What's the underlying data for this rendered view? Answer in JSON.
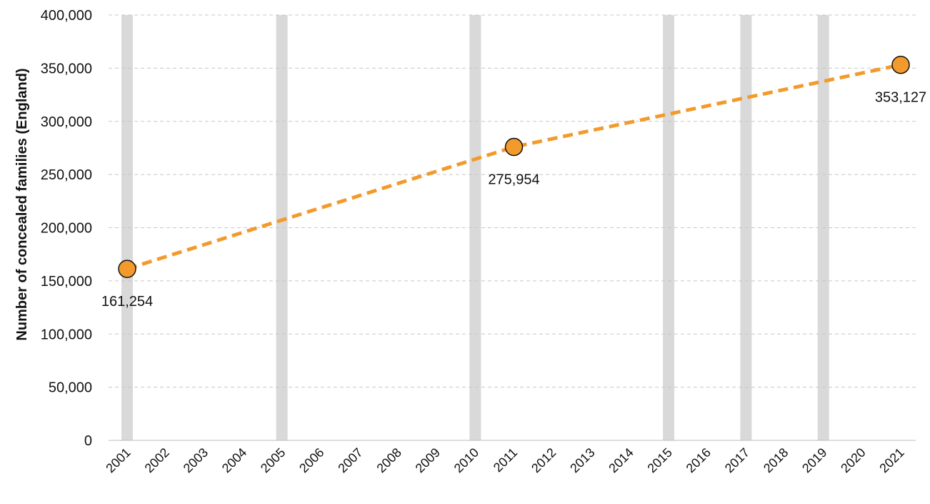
{
  "chart_data": {
    "type": "line",
    "title": "",
    "xlabel": "",
    "ylabel": "Number of concealed families (England)",
    "x": [
      "2001",
      "2002",
      "2003",
      "2004",
      "2005",
      "2006",
      "2007",
      "2008",
      "2009",
      "2010",
      "2011",
      "2012",
      "2013",
      "2014",
      "2015",
      "2016",
      "2017",
      "2018",
      "2019",
      "2020",
      "2021"
    ],
    "ylim": [
      0,
      400000
    ],
    "yticks": [
      0,
      50000,
      100000,
      150000,
      200000,
      250000,
      300000,
      350000,
      400000
    ],
    "ytick_labels": [
      "0",
      "50,000",
      "100,000",
      "150,000",
      "200,000",
      "250,000",
      "300,000",
      "350,000",
      "400,000"
    ],
    "grid": "horizontal dashed",
    "highlighted_years": [
      "2001",
      "2005",
      "2010",
      "2015",
      "2017",
      "2019"
    ],
    "series": [
      {
        "x": [
          "2001",
          "2011",
          "2021"
        ],
        "values": [
          161254,
          275954,
          353127
        ],
        "labels": [
          "161,254",
          "275,954",
          "353,127"
        ],
        "line_style": "dashed",
        "color": "#f39a2c",
        "marker_color": "#f39a2c"
      }
    ],
    "colors": {
      "line": "#f39a2c",
      "highlight_bar": "#d9d9d9",
      "grid": "#c8c8c8"
    }
  }
}
